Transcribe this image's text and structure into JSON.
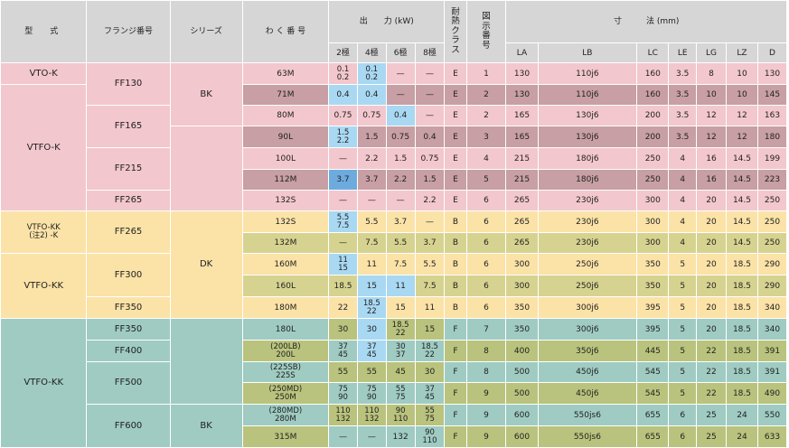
{
  "header": {
    "type": "型　式",
    "flange": "フランジ番号",
    "series": "シリーズ",
    "frame": "わ く 番 号",
    "output": "出　　力 (kW)",
    "heat_class": "耐熱クラス",
    "fig_no": "図示番号",
    "dims": "寸　　　法 (mm)",
    "poles": [
      "2極",
      "4極",
      "6極",
      "8極"
    ],
    "dim_cols": [
      "LA",
      "LB",
      "LC",
      "LE",
      "LG",
      "LZ",
      "D"
    ]
  },
  "groups": {
    "types": [
      "VTO-K",
      "VTFO-K",
      "VTFO-KK\n(注2) -K",
      "VTFO-KK",
      "VTFO-KK"
    ],
    "flanges": [
      "FF130",
      "FF165",
      "FF215",
      "FF265",
      "FF265",
      "FF300",
      "FF350",
      "FF350",
      "FF400",
      "FF500",
      "FF600"
    ],
    "series": [
      "BK",
      "DK",
      "BK"
    ]
  },
  "rows": [
    {
      "frame": "63M",
      "p2": "0.1\n0.2",
      "p4": "0.1\n0.2",
      "p6": "—",
      "p8": "—",
      "cls": "E",
      "fig": "1",
      "LA": "130",
      "LB": "110j6",
      "LC": "160",
      "LE": "3.5",
      "LG": "8",
      "LZ": "10",
      "D": "130"
    },
    {
      "frame": "71M",
      "p2": "0.4",
      "p4": "0.4",
      "p6": "—",
      "p8": "—",
      "cls": "E",
      "fig": "2",
      "LA": "130",
      "LB": "110j6",
      "LC": "160",
      "LE": "3.5",
      "LG": "10",
      "LZ": "10",
      "D": "145"
    },
    {
      "frame": "80M",
      "p2": "0.75",
      "p4": "0.75",
      "p6": "0.4",
      "p8": "—",
      "cls": "E",
      "fig": "2",
      "LA": "165",
      "LB": "130j6",
      "LC": "200",
      "LE": "3.5",
      "LG": "12",
      "LZ": "12",
      "D": "163"
    },
    {
      "frame": "90L",
      "p2": "1.5\n2.2",
      "p4": "1.5",
      "p6": "0.75",
      "p8": "0.4",
      "cls": "E",
      "fig": "3",
      "LA": "165",
      "LB": "130j6",
      "LC": "200",
      "LE": "3.5",
      "LG": "12",
      "LZ": "12",
      "D": "180"
    },
    {
      "frame": "100L",
      "p2": "—",
      "p4": "2.2",
      "p6": "1.5",
      "p8": "0.75",
      "cls": "E",
      "fig": "4",
      "LA": "215",
      "LB": "180j6",
      "LC": "250",
      "LE": "4",
      "LG": "16",
      "LZ": "14.5",
      "D": "199"
    },
    {
      "frame": "112M",
      "p2": "3.7",
      "p4": "3.7",
      "p6": "2.2",
      "p8": "1.5",
      "cls": "E",
      "fig": "5",
      "LA": "215",
      "LB": "180j6",
      "LC": "250",
      "LE": "4",
      "LG": "16",
      "LZ": "14.5",
      "D": "223"
    },
    {
      "frame": "132S",
      "p2": "—",
      "p4": "—",
      "p6": "—",
      "p8": "2.2",
      "cls": "E",
      "fig": "6",
      "LA": "265",
      "LB": "230j6",
      "LC": "300",
      "LE": "4",
      "LG": "20",
      "LZ": "14.5",
      "D": "250"
    },
    {
      "frame": "132S",
      "p2": "5.5\n7.5",
      "p4": "5.5",
      "p6": "3.7",
      "p8": "—",
      "cls": "B",
      "fig": "6",
      "LA": "265",
      "LB": "230j6",
      "LC": "300",
      "LE": "4",
      "LG": "20",
      "LZ": "14.5",
      "D": "250"
    },
    {
      "frame": "132M",
      "p2": "—",
      "p4": "7.5",
      "p6": "5.5",
      "p8": "3.7",
      "cls": "B",
      "fig": "6",
      "LA": "265",
      "LB": "230j6",
      "LC": "300",
      "LE": "4",
      "LG": "20",
      "LZ": "14.5",
      "D": "250"
    },
    {
      "frame": "160M",
      "p2": "11\n15",
      "p4": "11",
      "p6": "7.5",
      "p8": "5.5",
      "cls": "B",
      "fig": "6",
      "LA": "300",
      "LB": "250j6",
      "LC": "350",
      "LE": "5",
      "LG": "20",
      "LZ": "18.5",
      "D": "290"
    },
    {
      "frame": "160L",
      "p2": "18.5",
      "p4": "15",
      "p6": "11",
      "p8": "7.5",
      "cls": "B",
      "fig": "6",
      "LA": "300",
      "LB": "250j6",
      "LC": "350",
      "LE": "5",
      "LG": "20",
      "LZ": "18.5",
      "D": "290"
    },
    {
      "frame": "180M",
      "p2": "22",
      "p4": "18.5\n22",
      "p6": "15",
      "p8": "11",
      "cls": "B",
      "fig": "6",
      "LA": "350",
      "LB": "300j6",
      "LC": "395",
      "LE": "5",
      "LG": "20",
      "LZ": "18.5",
      "D": "340"
    },
    {
      "frame": "180L",
      "p2": "30",
      "p4": "30",
      "p6": "18.5\n22",
      "p8": "15",
      "cls": "F",
      "fig": "7",
      "LA": "350",
      "LB": "300j6",
      "LC": "395",
      "LE": "5",
      "LG": "20",
      "LZ": "18.5",
      "D": "340"
    },
    {
      "frame": "(200LB)\n200L",
      "p2": "37\n45",
      "p4": "37\n45",
      "p6": "30\n37",
      "p8": "18.5\n22",
      "cls": "F",
      "fig": "8",
      "LA": "400",
      "LB": "350j6",
      "LC": "445",
      "LE": "5",
      "LG": "22",
      "LZ": "18.5",
      "D": "391"
    },
    {
      "frame": "(225SB)\n225S",
      "p2": "55",
      "p4": "55",
      "p6": "45",
      "p8": "30",
      "cls": "F",
      "fig": "8",
      "LA": "500",
      "LB": "450j6",
      "LC": "545",
      "LE": "5",
      "LG": "22",
      "LZ": "18.5",
      "D": "391"
    },
    {
      "frame": "(250MD)\n250M",
      "p2": "75\n90",
      "p4": "75\n90",
      "p6": "55\n75",
      "p8": "37\n45",
      "cls": "F",
      "fig": "9",
      "LA": "500",
      "LB": "450j6",
      "LC": "545",
      "LE": "5",
      "LG": "22",
      "LZ": "18.5",
      "D": "490"
    },
    {
      "frame": "(280MD)\n280M",
      "p2": "110\n132",
      "p4": "110\n132",
      "p6": "90\n110",
      "p8": "55\n75",
      "cls": "F",
      "fig": "9",
      "LA": "600",
      "LB": "550js6",
      "LC": "655",
      "LE": "6",
      "LG": "25",
      "LZ": "24",
      "D": "550"
    },
    {
      "frame": "315M",
      "p2": "—",
      "p4": "—",
      "p6": "132",
      "p8": "90\n110",
      "cls": "F",
      "fig": "9",
      "LA": "600",
      "LB": "550js6",
      "LC": "655",
      "LE": "6",
      "LG": "25",
      "LZ": "24",
      "D": "633"
    }
  ]
}
